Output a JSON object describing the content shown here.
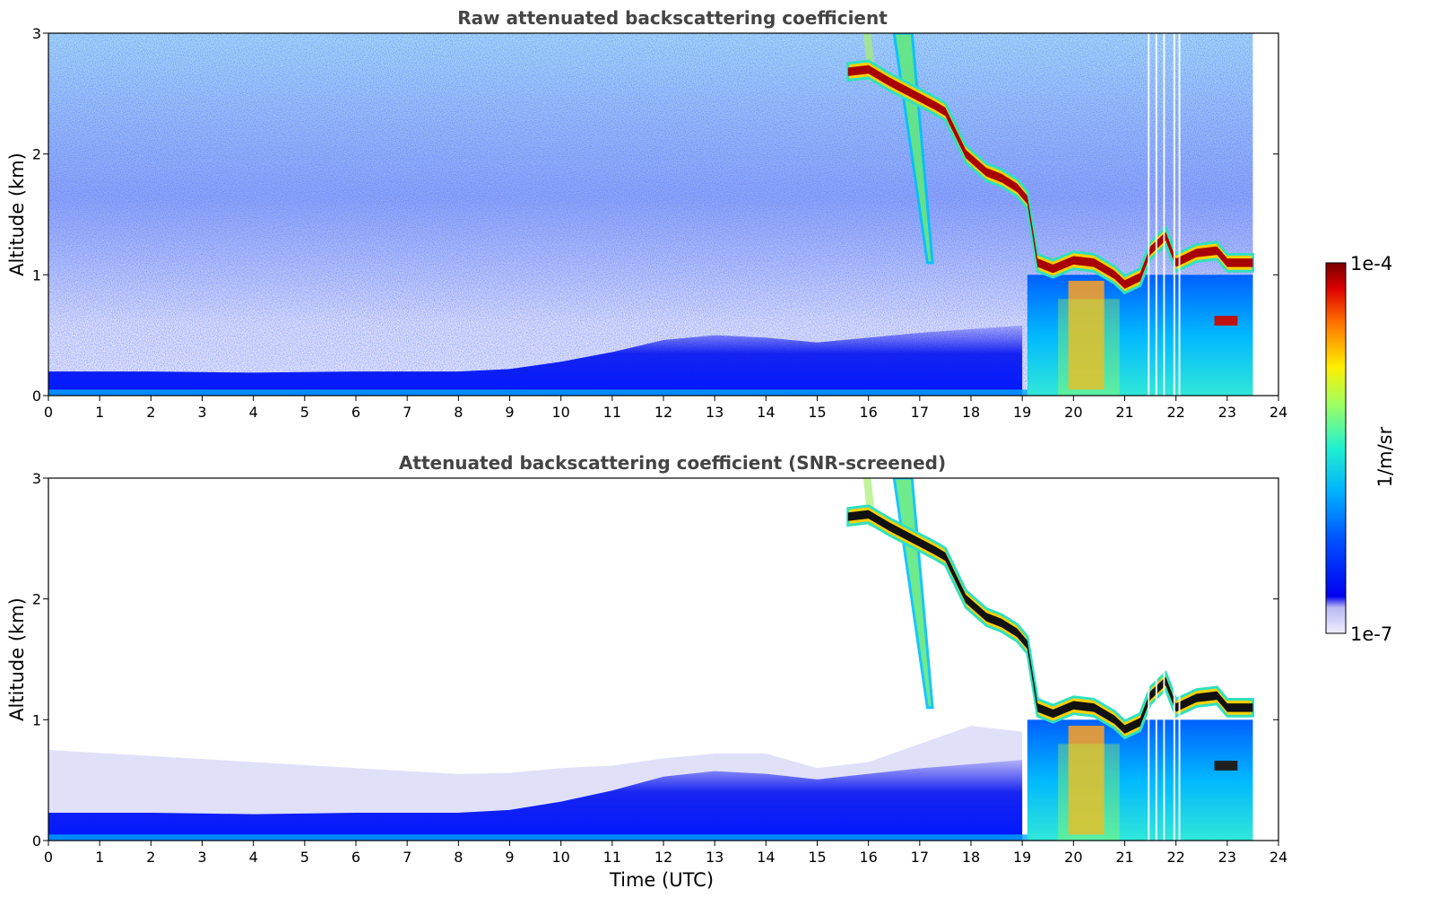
{
  "chart_data": [
    {
      "type": "heatmap",
      "title": "Raw attenuated backscattering coefficient",
      "xlabel": "",
      "ylabel": "Altitude (km)",
      "xlim": [
        0,
        24
      ],
      "ylim": [
        0,
        3
      ],
      "xticks": [
        "0",
        "1",
        "2",
        "3",
        "4",
        "5",
        "6",
        "7",
        "8",
        "9",
        "10",
        "11",
        "12",
        "13",
        "14",
        "15",
        "16",
        "17",
        "18",
        "19",
        "20",
        "21",
        "22",
        "23",
        "24"
      ],
      "yticks": [
        "0",
        "1",
        "2",
        "3"
      ],
      "data_end_time": 23.5,
      "features": {
        "cloud_layer": {
          "time": [
            15.6,
            16.0,
            16.4,
            17.3,
            17.5,
            17.9,
            18.3,
            18.6,
            18.9,
            19.1,
            19.3,
            19.6,
            20.0,
            20.4,
            20.8,
            21.0,
            21.3,
            21.5,
            21.8,
            22.0,
            22.4,
            22.8,
            23.0,
            23.5
          ],
          "altitude_km": [
            2.68,
            2.7,
            2.6,
            2.4,
            2.35,
            2.0,
            1.85,
            1.8,
            1.72,
            1.62,
            1.1,
            1.05,
            1.12,
            1.1,
            1.0,
            0.92,
            0.98,
            1.2,
            1.32,
            1.1,
            1.18,
            1.2,
            1.1,
            1.1
          ]
        },
        "boundary_layer_top_km": {
          "time": [
            0,
            2,
            4,
            6,
            8,
            9,
            10,
            11,
            12,
            13,
            14,
            15,
            16,
            17,
            18,
            19
          ],
          "altitude_km": [
            0.2,
            0.2,
            0.19,
            0.2,
            0.2,
            0.22,
            0.28,
            0.36,
            0.46,
            0.5,
            0.48,
            0.44,
            0.48,
            0.52,
            0.55,
            0.58
          ]
        }
      }
    },
    {
      "type": "heatmap",
      "title": "Attenuated backscattering coefficient (SNR-screened)",
      "xlabel": "Time (UTC)",
      "ylabel": "Altitude (km)",
      "xlim": [
        0,
        24
      ],
      "ylim": [
        0,
        3
      ],
      "xticks": [
        "0",
        "1",
        "2",
        "3",
        "4",
        "5",
        "6",
        "7",
        "8",
        "9",
        "10",
        "11",
        "12",
        "13",
        "14",
        "15",
        "16",
        "17",
        "18",
        "19",
        "20",
        "21",
        "22",
        "23",
        "24"
      ],
      "yticks": [
        "0",
        "1",
        "2",
        "3"
      ],
      "data_end_time": 23.5,
      "features": {
        "aerosol_top_km": {
          "time": [
            0,
            2,
            4,
            6,
            8,
            9,
            10,
            11,
            12,
            13,
            14,
            15,
            16,
            17,
            18,
            19
          ],
          "altitude_km": [
            0.75,
            0.7,
            0.65,
            0.6,
            0.55,
            0.56,
            0.6,
            0.62,
            0.68,
            0.72,
            0.72,
            0.6,
            0.65,
            0.8,
            0.95,
            0.9
          ]
        }
      }
    }
  ],
  "colorbar": {
    "max_label": "1e-4",
    "min_label": "1e-7",
    "unit_label": "1/m/sr",
    "colors": [
      "#e8e8fb",
      "#c8c8f5",
      "#a0a0ee",
      "#0000f0",
      "#0040ff",
      "#0090ff",
      "#00d0ff",
      "#30ffc8",
      "#a0ff60",
      "#f0f000",
      "#ffa000",
      "#ff3000",
      "#d00000",
      "#800000"
    ]
  }
}
